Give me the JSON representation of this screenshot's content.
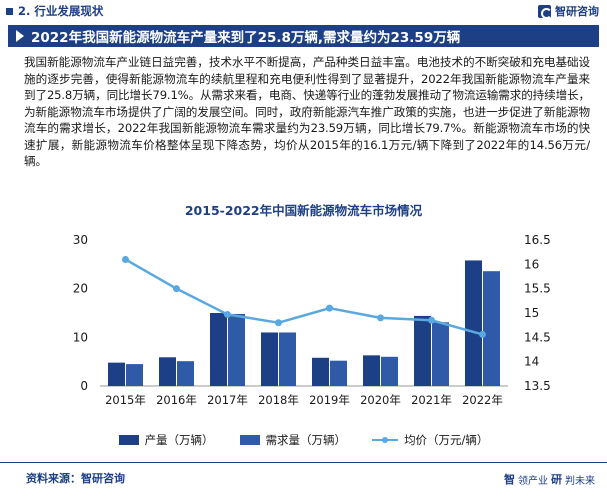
{
  "header": {
    "section": "2. 行业发展现状",
    "logo_text": "智研咨询"
  },
  "title_bar": {
    "title": "2022年我国新能源物流车产量来到了25.8万辆,需求量约为23.59万辆"
  },
  "paragraph": "我国新能源物流车产业链日益完善，技术水平不断提高，产品种类日益丰富。电池技术的不断突破和充电基础设施的逐步完善，使得新能源物流车的续航里程和充电便利性得到了显著提升，2022年我国新能源物流车产量来到了25.8万辆，同比增长79.1%。从需求来看，电商、快递等行业的蓬勃发展推动了物流运输需求的持续增长，为新能源物流车市场提供了广阔的发展空间。同时，政府新能源汽车推广政策的实施，也进一步促进了新能源物流车的需求增长，2022年我国新能源物流车需求量约为23.59万辆，同比增长79.7%。新能源物流车市场的快速扩展，新能源物流车价格整体呈现下降态势，均价从2015年的16.1万元/辆下降到了2022年的14.56万元/辆。",
  "chart_data": {
    "type": "bar",
    "title": "2015-2022年中国新能源物流车市场情况",
    "categories": [
      "2015年",
      "2016年",
      "2017年",
      "2018年",
      "2019年",
      "2020年",
      "2021年",
      "2022年"
    ],
    "series": [
      {
        "name": "产量（万辆）",
        "type": "bar",
        "axis": "left",
        "color": "#1d3f86",
        "values": [
          4.8,
          5.9,
          15.0,
          11.0,
          5.8,
          6.3,
          14.4,
          25.8
        ]
      },
      {
        "name": "需求量（万辆）",
        "type": "bar",
        "axis": "left",
        "color": "#2e5aa8",
        "values": [
          4.5,
          5.1,
          14.8,
          11.0,
          5.2,
          6.0,
          13.1,
          23.59
        ]
      },
      {
        "name": "均价（万元/辆）",
        "type": "line",
        "axis": "right",
        "color": "#5aa8e0",
        "values": [
          16.1,
          15.5,
          14.97,
          14.8,
          15.1,
          14.9,
          14.85,
          14.56
        ]
      }
    ],
    "left_axis": {
      "min": 0,
      "max": 30,
      "ticks": [
        "0",
        "10",
        "20",
        "30"
      ]
    },
    "right_axis": {
      "min": 13.5,
      "max": 16.5,
      "ticks": [
        "13.5",
        "14",
        "14.5",
        "15",
        "15.5",
        "16",
        "16.5"
      ]
    },
    "grid": false,
    "legend_position": "bottom"
  },
  "footer": {
    "source": "资料来源：智研咨询",
    "logo_left": "智",
    "logo_left_rest": "领产业",
    "logo_right": "研",
    "logo_right_rest": "判未来"
  }
}
